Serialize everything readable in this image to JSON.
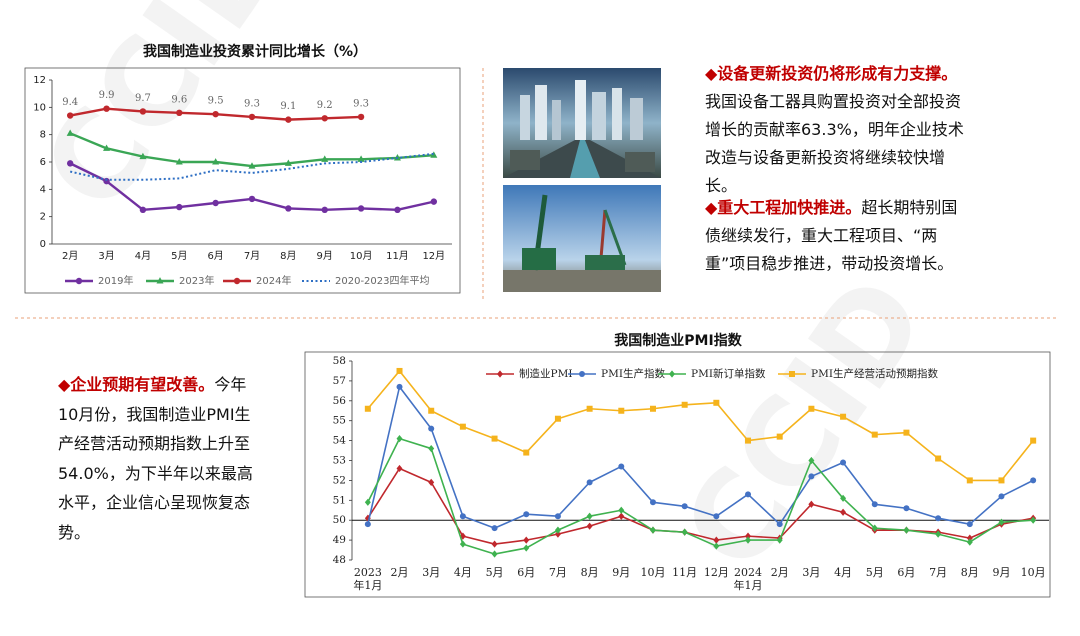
{
  "watermark": "CCID",
  "chart_data": [
    {
      "type": "line",
      "title": "我国制造业投资累计同比增长（%）",
      "categories": [
        "2月",
        "3月",
        "4月",
        "5月",
        "6月",
        "7月",
        "8月",
        "9月",
        "10月",
        "11月",
        "12月"
      ],
      "ylim": [
        0,
        12
      ],
      "yticks": [
        0,
        2,
        4,
        6,
        8,
        10,
        12
      ],
      "series": [
        {
          "name": "2019年",
          "color": "#7030a0",
          "marker": "circle",
          "values": [
            5.9,
            4.6,
            2.5,
            2.7,
            3.0,
            3.3,
            2.6,
            2.5,
            2.6,
            2.5,
            3.1
          ]
        },
        {
          "name": "2023年",
          "color": "#3aa655",
          "marker": "triangle",
          "values": [
            8.1,
            7.0,
            6.4,
            6.0,
            6.0,
            5.7,
            5.9,
            6.2,
            6.2,
            6.3,
            6.5
          ]
        },
        {
          "name": "2024年",
          "color": "#c0282d",
          "marker": "circle",
          "show_values": true,
          "values": [
            9.4,
            9.9,
            9.7,
            9.6,
            9.5,
            9.3,
            9.1,
            9.2,
            9.3,
            null,
            null
          ]
        },
        {
          "name": "2020-2023四年平均",
          "color": "#2e6fc4",
          "dash": "dotted",
          "values": [
            5.3,
            4.7,
            4.7,
            4.8,
            5.4,
            5.2,
            5.5,
            5.9,
            6.0,
            6.3,
            6.6
          ]
        }
      ]
    },
    {
      "type": "line",
      "title": "我国制造业PMI指数",
      "categories": [
        "2023年1月",
        "2月",
        "3月",
        "4月",
        "5月",
        "6月",
        "7月",
        "8月",
        "9月",
        "10月",
        "11月",
        "12月",
        "2024年1月",
        "2月",
        "3月",
        "4月",
        "5月",
        "6月",
        "7月",
        "8月",
        "9月",
        "10月"
      ],
      "ylim": [
        48,
        58
      ],
      "yticks": [
        48,
        49,
        50,
        51,
        52,
        53,
        54,
        55,
        56,
        57,
        58
      ],
      "reference_line": 50,
      "series": [
        {
          "name": "制造业PMI",
          "color": "#c0282d",
          "marker": "diamond",
          "values": [
            50.1,
            52.6,
            51.9,
            49.2,
            48.8,
            49.0,
            49.3,
            49.7,
            50.2,
            49.5,
            49.4,
            49.0,
            49.2,
            49.1,
            50.8,
            50.4,
            49.5,
            49.5,
            49.4,
            49.1,
            49.8,
            50.1
          ]
        },
        {
          "name": "PMI生产指数",
          "color": "#4472c4",
          "marker": "circle",
          "values": [
            49.8,
            56.7,
            54.6,
            50.2,
            49.6,
            50.3,
            50.2,
            51.9,
            52.7,
            50.9,
            50.7,
            50.2,
            51.3,
            49.8,
            52.2,
            52.9,
            50.8,
            50.6,
            50.1,
            49.8,
            51.2,
            52.0
          ]
        },
        {
          "name": "PMI新订单指数",
          "color": "#3fb24f",
          "marker": "diamond",
          "values": [
            50.9,
            54.1,
            53.6,
            48.8,
            48.3,
            48.6,
            49.5,
            50.2,
            50.5,
            49.5,
            49.4,
            48.7,
            49.0,
            49.0,
            53.0,
            51.1,
            49.6,
            49.5,
            49.3,
            48.9,
            49.9,
            50.0
          ]
        },
        {
          "name": "PMI生产经营活动预期指数",
          "color": "#f5b31c",
          "marker": "square",
          "values": [
            55.6,
            57.5,
            55.5,
            54.7,
            54.1,
            53.4,
            55.1,
            55.6,
            55.5,
            55.6,
            55.8,
            55.9,
            54.0,
            54.2,
            55.6,
            55.2,
            54.3,
            54.4,
            53.1,
            52.0,
            52.0,
            54.0
          ]
        }
      ]
    }
  ],
  "notes": [
    {
      "heading": "◆设备更新投资仍将形成有力支撑。",
      "text": "我国设备工器具购置投资对全部投资增长的贡献率63.3%，明年企业技术改造与设备更新投资将继续较快增长。"
    },
    {
      "heading": "◆重大工程加快推进。",
      "text": "超长期特别国债继续发行，重大工程项目、“两重”项目稳步推进，带动投资增长。"
    },
    {
      "heading": "◆企业预期有望改善。",
      "text": "今年10月份，我国制造业PMI生产经营活动预期指数上升至54.0%，为下半年以来最高水平，企业信心呈现恢复态势。"
    }
  ]
}
